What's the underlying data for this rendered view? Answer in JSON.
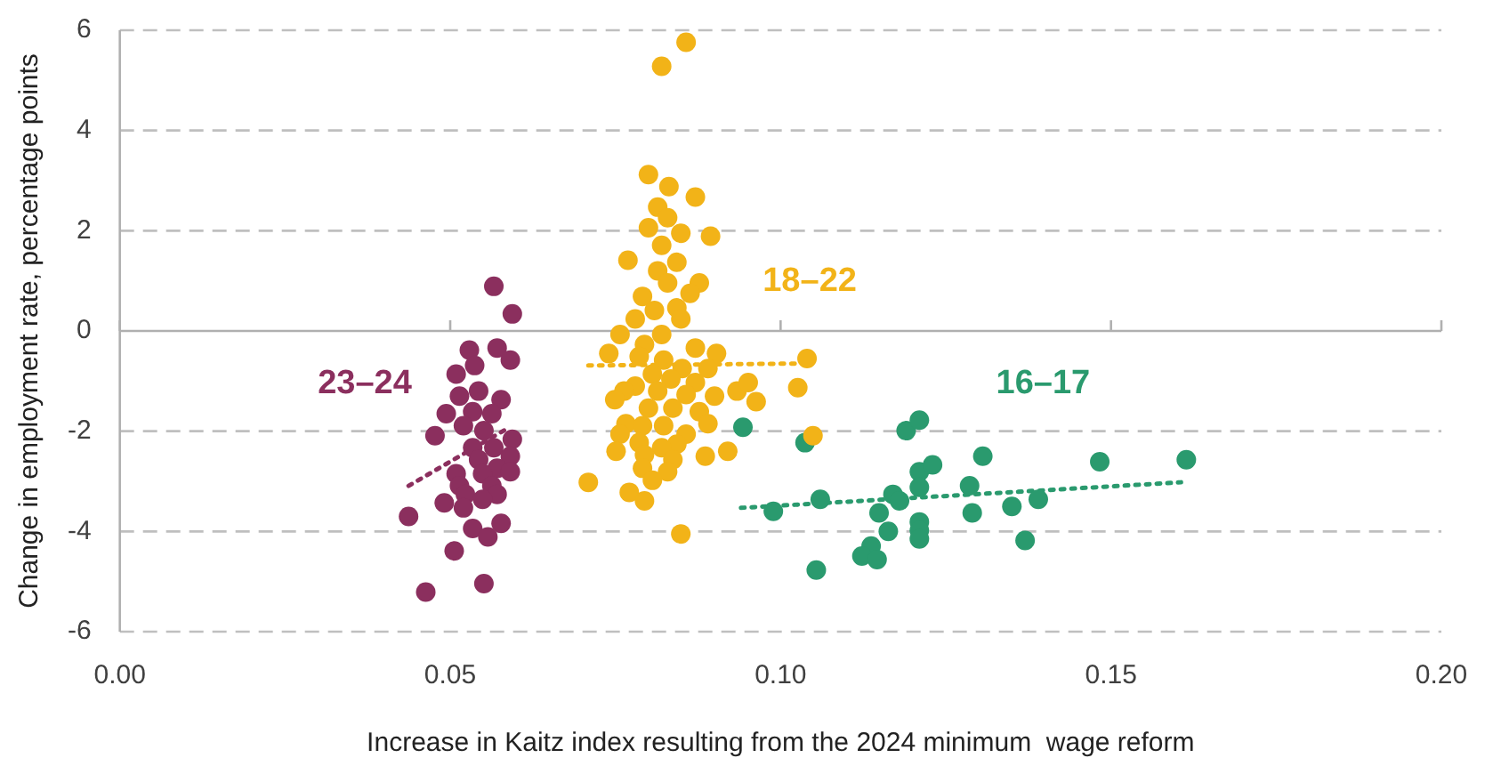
{
  "chart_data": {
    "type": "scatter",
    "xlabel": "Increase in Kaitz index resulting from the 2024 minimum  wage reform",
    "ylabel": "Change in employment rate, percentage points",
    "xlim": [
      0,
      0.2
    ],
    "xticks": [
      {
        "value": 0,
        "label": "0.00"
      },
      {
        "value": 0.05,
        "label": "0.05"
      },
      {
        "value": 0.1,
        "label": "0.10"
      },
      {
        "value": 0.15,
        "label": "0.15"
      },
      {
        "value": 0.2,
        "label": "0.20"
      }
    ],
    "ylim": [
      -6,
      6
    ],
    "yticks": [
      -6,
      -4,
      -2,
      0,
      2,
      4,
      6
    ],
    "grid": "y",
    "legend": false,
    "marker": "circle",
    "series": [
      {
        "name": "23–24",
        "color": "#8b2f5e",
        "x": [
          0.0566,
          0.0594,
          0.0529,
          0.0571,
          0.0591,
          0.0537,
          0.0509,
          0.0543,
          0.0514,
          0.0577,
          0.0494,
          0.0534,
          0.0563,
          0.0477,
          0.052,
          0.0551,
          0.0594,
          0.0534,
          0.0566,
          0.0591,
          0.0543,
          0.0571,
          0.0509,
          0.0549,
          0.0591,
          0.0514,
          0.0563,
          0.0523,
          0.0571,
          0.0491,
          0.052,
          0.0549,
          0.0577,
          0.0534,
          0.0557,
          0.0437,
          0.0506,
          0.0551,
          0.0463
        ],
        "values": [
          0.89,
          0.34,
          -0.38,
          -0.34,
          -0.58,
          -0.69,
          -0.86,
          -1.2,
          -1.3,
          -1.37,
          -1.65,
          -1.61,
          -1.65,
          -2.09,
          -1.89,
          -1.99,
          -2.16,
          -2.33,
          -2.33,
          -2.5,
          -2.57,
          -2.74,
          -2.85,
          -2.85,
          -2.81,
          -3.09,
          -3.09,
          -3.26,
          -3.26,
          -3.43,
          -3.53,
          -3.36,
          -3.84,
          -3.94,
          -4.11,
          -3.7,
          -4.39,
          -5.04,
          -5.21
        ]
      },
      {
        "name": "18–22",
        "color": "#f2b318",
        "x": [
          0.0857,
          0.082,
          0.08,
          0.0831,
          0.0871,
          0.0814,
          0.0829,
          0.08,
          0.0849,
          0.0894,
          0.082,
          0.0769,
          0.0843,
          0.0814,
          0.0829,
          0.0877,
          0.0863,
          0.0791,
          0.0843,
          0.0809,
          0.078,
          0.0849,
          0.0757,
          0.082,
          0.0794,
          0.074,
          0.0871,
          0.0903,
          0.0786,
          0.0823,
          0.104,
          0.0851,
          0.089,
          0.0806,
          0.0834,
          0.0871,
          0.078,
          0.0814,
          0.0857,
          0.09,
          0.0763,
          0.0749,
          0.0934,
          0.0951,
          0.0963,
          0.1026,
          0.08,
          0.0837,
          0.0877,
          0.089,
          0.0766,
          0.0791,
          0.0823,
          0.0757,
          0.0857,
          0.1049,
          0.0786,
          0.0843,
          0.082,
          0.0751,
          0.0886,
          0.092,
          0.0794,
          0.0837,
          0.0791,
          0.0829,
          0.0709,
          0.0806,
          0.0771,
          0.0794,
          0.0849
        ],
        "values": [
          5.76,
          5.28,
          3.12,
          2.88,
          2.67,
          2.47,
          2.26,
          2.06,
          1.95,
          1.89,
          1.71,
          1.41,
          1.37,
          1.2,
          0.96,
          0.96,
          0.75,
          0.69,
          0.46,
          0.41,
          0.24,
          0.24,
          -0.07,
          -0.07,
          -0.27,
          -0.45,
          -0.34,
          -0.45,
          -0.51,
          -0.58,
          -0.55,
          -0.75,
          -0.75,
          -0.86,
          -0.96,
          -1.03,
          -1.1,
          -1.2,
          -1.27,
          -1.3,
          -1.2,
          -1.37,
          -1.2,
          -1.03,
          -1.41,
          -1.13,
          -1.54,
          -1.54,
          -1.61,
          -1.85,
          -1.85,
          -1.89,
          -1.89,
          -2.06,
          -2.06,
          -2.09,
          -2.23,
          -2.26,
          -2.33,
          -2.4,
          -2.5,
          -2.4,
          -2.47,
          -2.57,
          -2.74,
          -2.81,
          -3.02,
          -2.98,
          -3.22,
          -3.39,
          -4.05
        ]
      },
      {
        "name": "16–17",
        "color": "#2a9a6e",
        "x": [
          0.0943,
          0.1037,
          0.0989,
          0.106,
          0.1054,
          0.1149,
          0.117,
          0.118,
          0.1163,
          0.1137,
          0.1123,
          0.1146,
          0.119,
          0.121,
          0.121,
          0.123,
          0.121,
          0.121,
          0.121,
          0.121,
          0.1286,
          0.129,
          0.1306,
          0.135,
          0.139,
          0.137,
          0.1483,
          0.1614
        ],
        "values": [
          -1.92,
          -2.23,
          -3.6,
          -3.36,
          -4.77,
          -3.63,
          -3.26,
          -3.39,
          -4.0,
          -4.29,
          -4.49,
          -4.56,
          -1.99,
          -1.78,
          -2.81,
          -2.67,
          -3.12,
          -3.81,
          -3.98,
          -4.15,
          -3.09,
          -3.63,
          -2.5,
          -3.5,
          -3.36,
          -4.18,
          -2.61,
          -2.57
        ]
      },
      {
        "type": "line",
        "color": "#8b2f5e",
        "line_style": "dotted",
        "marker": "none",
        "x": [
          0.0437,
          0.0586
        ],
        "values": [
          -3.09,
          -1.95
        ]
      },
      {
        "type": "line",
        "color": "#f2b318",
        "line_style": "dotted",
        "marker": "none",
        "x": [
          0.0709,
          0.1029
        ],
        "values": [
          -0.69,
          -0.65
        ]
      },
      {
        "type": "line",
        "color": "#2a9a6e",
        "line_style": "dotted",
        "marker": "none",
        "x": [
          0.094,
          0.1606
        ],
        "values": [
          -3.53,
          -3.02
        ]
      }
    ]
  }
}
